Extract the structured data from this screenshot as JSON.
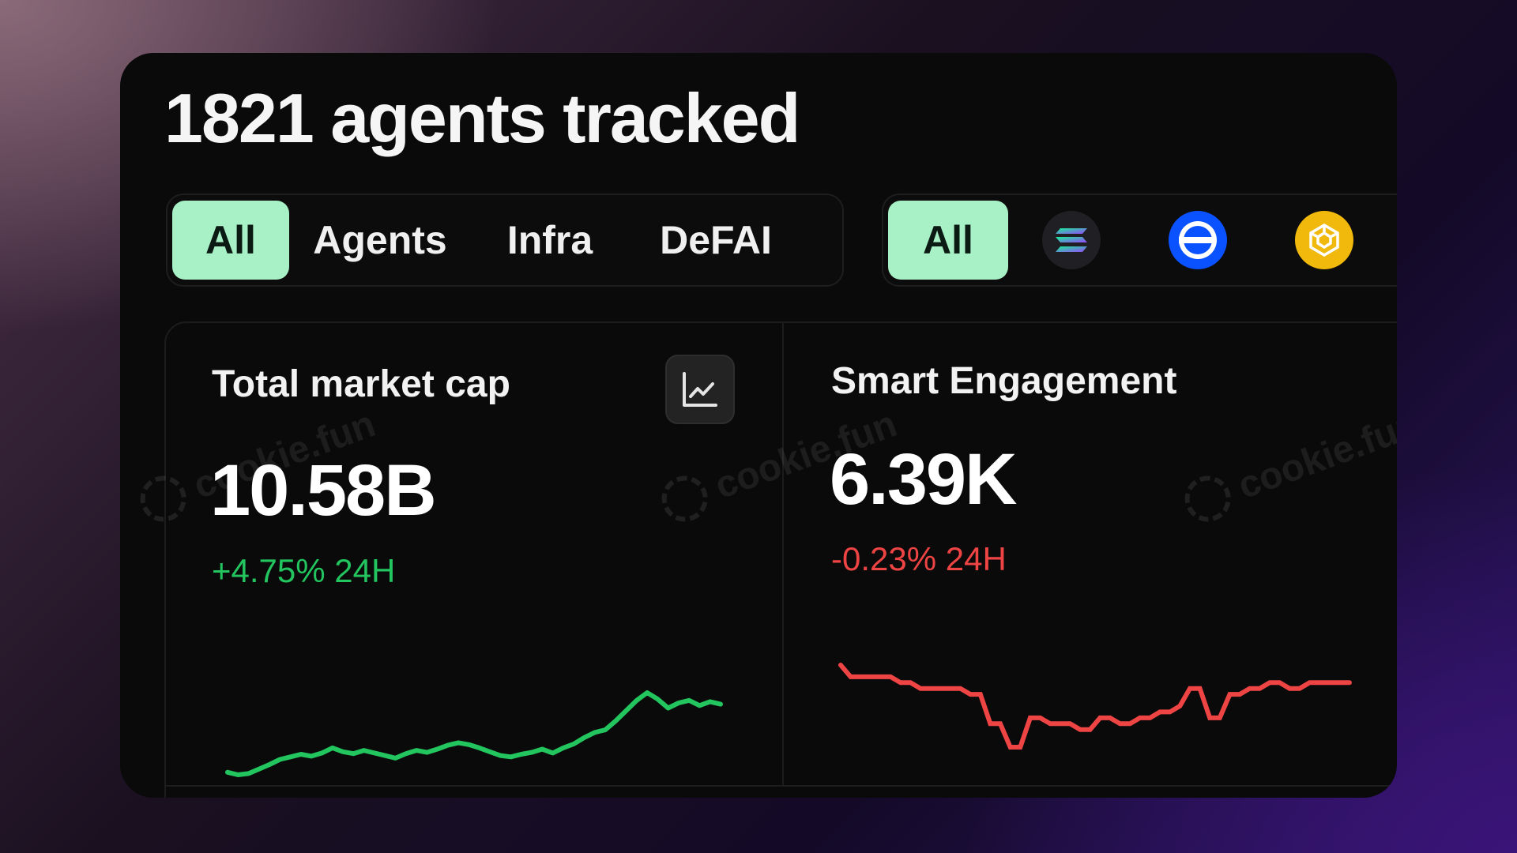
{
  "header": {
    "title": "1821 agents tracked"
  },
  "category_filter": {
    "options": [
      "All",
      "Agents",
      "Infra",
      "DeFAI"
    ],
    "selected": "All"
  },
  "chain_filter": {
    "all_label": "All",
    "selected": "All",
    "chains": [
      {
        "name": "solana-icon"
      },
      {
        "name": "base-icon"
      },
      {
        "name": "bnb-icon"
      }
    ]
  },
  "watermark": "cookie.fun",
  "cards": [
    {
      "label": "Total market cap",
      "value": "10.58B",
      "change": "+4.75% 24H",
      "change_color": "#22c55e"
    },
    {
      "label": "Smart Engagement",
      "value": "6.39K",
      "change": "-0.23% 24H",
      "change_color": "#ef4444"
    }
  ],
  "chart_data": [
    {
      "type": "line",
      "title": "Total market cap",
      "color": "#22c55e",
      "values": [
        3.0,
        2.6,
        2.8,
        3.5,
        4.2,
        5.0,
        5.4,
        5.8,
        5.5,
        6.0,
        6.8,
        6.2,
        5.9,
        6.4,
        6.0,
        5.6,
        5.2,
        5.9,
        6.4,
        6.1,
        6.6,
        7.2,
        7.6,
        7.3,
        6.8,
        6.2,
        5.6,
        5.4,
        5.8,
        6.1,
        6.6,
        6.0,
        6.8,
        7.4,
        8.4,
        9.2,
        9.6,
        11.0,
        12.6,
        14.2,
        15.4,
        14.4,
        13.0,
        13.8,
        14.2,
        13.4,
        14.0,
        13.6
      ]
    },
    {
      "type": "line",
      "title": "Smart Engagement",
      "color": "#ef4444",
      "values": [
        11.0,
        10.0,
        10.0,
        10.0,
        10.0,
        10.0,
        9.5,
        9.5,
        9.0,
        9.0,
        9.0,
        9.0,
        9.0,
        8.5,
        8.5,
        6.0,
        6.0,
        4.0,
        4.0,
        6.5,
        6.5,
        6.0,
        6.0,
        6.0,
        5.5,
        5.5,
        6.5,
        6.5,
        6.0,
        6.0,
        6.5,
        6.5,
        7.0,
        7.0,
        7.5,
        9.0,
        9.0,
        6.5,
        6.5,
        8.5,
        8.5,
        9.0,
        9.0,
        9.5,
        9.5,
        9.0,
        9.0,
        9.5,
        9.5,
        9.5,
        9.5,
        9.5
      ]
    }
  ]
}
